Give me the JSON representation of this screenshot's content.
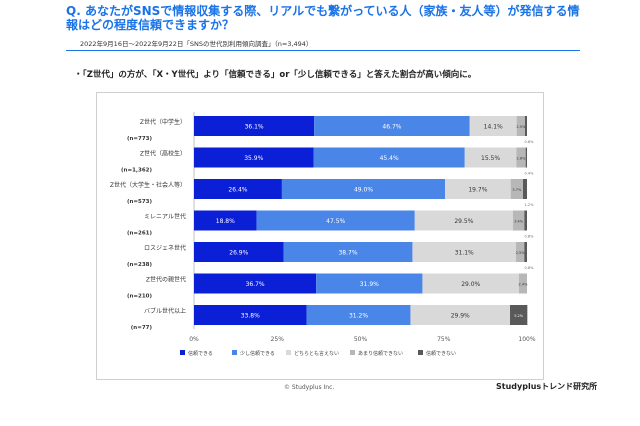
{
  "header": {
    "title": "Q. あなたがSNSで情報収集する際、リアルでも繋がっている人（家族・友人等）が発信する情報はどの程度信頼できますか？",
    "subtitle": "2022年9月16日～2022年9月22日「SNSの世代別利用傾向調査」（n=3,494）",
    "finding": "・「Z世代」の方が、「X・Y世代」より「信頼できる」or「少し信頼できる」と答えた割合が高い傾向に。"
  },
  "footer": {
    "copyright": "© Studyplus Inc.",
    "brand": "Studyplusトレンド研究所"
  },
  "colors": {
    "trust": "#0b1fd6",
    "somewhat_trust": "#4a86e8",
    "neutral": "#d9d9d9",
    "not_much": "#b7b7b7",
    "no_trust": "#595959",
    "title_blue": "#1a73e8"
  },
  "chart_data": {
    "type": "bar",
    "orientation": "horizontal",
    "stacked": true,
    "percent_scale": true,
    "categories": [
      {
        "label": "Z世代（中学生）",
        "n": "(n=773)"
      },
      {
        "label": "Z世代（高校生）",
        "n": "(n=1,362)"
      },
      {
        "label": "Z世代（大学生・社会人等）",
        "n": "(n=573)"
      },
      {
        "label": "ミレニアル世代",
        "n": "(n=261)"
      },
      {
        "label": "ロスジェネ世代",
        "n": "(n=238)"
      },
      {
        "label": "Z世代の親世代",
        "n": "(n=210)"
      },
      {
        "label": "バブル世代以上",
        "n": "(n=77)"
      }
    ],
    "series": [
      {
        "name": "信頼できる",
        "values": [
          36.1,
          35.9,
          26.4,
          18.8,
          26.9,
          36.7,
          33.8
        ],
        "labels": [
          "36.1%",
          "35.9%",
          "26.4%",
          "18.8%",
          "26.9%",
          "36.7%",
          "33.8%"
        ]
      },
      {
        "name": "少し信頼できる",
        "values": [
          46.7,
          45.4,
          49.0,
          47.5,
          38.7,
          31.9,
          31.2
        ],
        "labels": [
          "46.7%",
          "45.4%",
          "49.0%",
          "47.5%",
          "38.7%",
          "31.9%",
          "31.2%"
        ]
      },
      {
        "name": "どちらとも言えない",
        "values": [
          14.1,
          15.5,
          19.7,
          29.5,
          31.1,
          29.0,
          29.9
        ],
        "labels": [
          "14.1%",
          "15.5%",
          "19.7%",
          "29.5%",
          "31.1%",
          "29.0%",
          "29.9%"
        ]
      },
      {
        "name": "あまり信頼できない",
        "values": [
          2.5,
          2.8,
          3.7,
          3.4,
          2.5,
          2.4,
          0.0
        ],
        "labels": [
          "2.5%",
          "2.8%",
          "3.7%",
          "3.4%",
          "2.5%",
          "2.4%",
          ""
        ]
      },
      {
        "name": "信頼できない",
        "values": [
          0.6,
          0.4,
          1.2,
          0.8,
          0.8,
          0.0,
          5.2
        ],
        "labels": [
          "0.6%",
          "0.4%",
          "1.2%",
          "0.8%",
          "0.8%",
          "",
          "5.2%"
        ]
      }
    ],
    "xticks": [
      "0%",
      "25%",
      "50%",
      "75%",
      "100%"
    ],
    "xlim": [
      0,
      100
    ],
    "legend_position": "bottom",
    "grid": false
  }
}
